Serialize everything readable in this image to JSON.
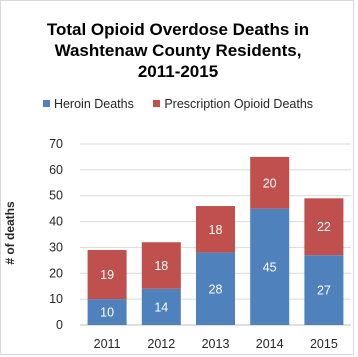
{
  "chart_data": {
    "type": "bar",
    "stacked": true,
    "title_lines": [
      "Total Opioid Overdose Deaths in",
      "Washtenaw County Residents,",
      "2011-2015"
    ],
    "xlabel": "",
    "ylabel": "# of deaths",
    "categories": [
      "2011",
      "2012",
      "2013",
      "2014",
      "2015"
    ],
    "series": [
      {
        "name": "Heroin Deaths",
        "values": [
          10,
          14,
          28,
          45,
          27
        ],
        "color": "#4f81bd"
      },
      {
        "name": "Prescription Opioid Deaths",
        "values": [
          19,
          18,
          18,
          20,
          22
        ],
        "color": "#c0504d"
      }
    ],
    "ylim": [
      0,
      70
    ],
    "yticks": [
      "0",
      "10",
      "20",
      "30",
      "40",
      "50",
      "60",
      "70"
    ],
    "grid": true,
    "legend_position": "top"
  }
}
